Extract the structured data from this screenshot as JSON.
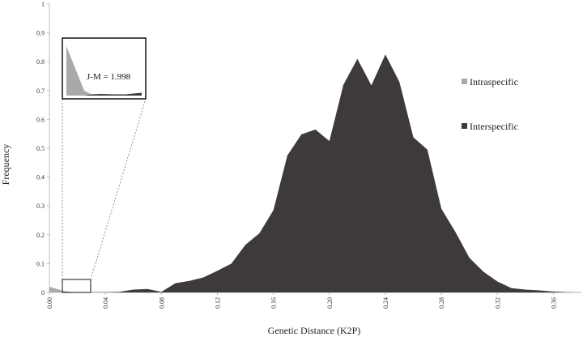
{
  "chart_data": {
    "type": "area",
    "xlabel": "Genetic Distance (K2P)",
    "ylabel": "Frequency",
    "xlim": [
      0,
      0.38
    ],
    "ylim": [
      0,
      1
    ],
    "x_ticks": [
      "0.00",
      "0.04",
      "0.08",
      "0.12",
      "0.16",
      "0.20",
      "0.24",
      "0.28",
      "0.32",
      "0.36"
    ],
    "y_ticks": [
      "0",
      "0.1",
      "0.2",
      "0.3",
      "0.4",
      "0.5",
      "0.6",
      "0.7",
      "0.8",
      "0.9",
      "1"
    ],
    "legend_position": "right",
    "series": [
      {
        "name": "Intraspecific",
        "color": "#a9a9a9",
        "x": [
          0.0,
          0.01,
          0.02
        ],
        "y": [
          0.02,
          0.005,
          0.0
        ]
      },
      {
        "name": "Interspecific",
        "color": "#3d3a39",
        "x": [
          0.0,
          0.01,
          0.02,
          0.03,
          0.04,
          0.05,
          0.06,
          0.07,
          0.08,
          0.09,
          0.1,
          0.11,
          0.12,
          0.13,
          0.14,
          0.15,
          0.16,
          0.17,
          0.18,
          0.19,
          0.2,
          0.21,
          0.22,
          0.23,
          0.24,
          0.25,
          0.26,
          0.27,
          0.28,
          0.29,
          0.3,
          0.31,
          0.32,
          0.33,
          0.34,
          0.35,
          0.36,
          0.37,
          0.38
        ],
        "y": [
          0.0,
          0.0,
          0.0,
          0.001,
          0.001,
          0.002,
          0.01,
          0.012,
          0.002,
          0.032,
          0.04,
          0.052,
          0.075,
          0.1,
          0.165,
          0.205,
          0.285,
          0.475,
          0.548,
          0.565,
          0.525,
          0.72,
          0.81,
          0.718,
          0.825,
          0.73,
          0.538,
          0.495,
          0.29,
          0.21,
          0.12,
          0.072,
          0.038,
          0.015,
          0.01,
          0.007,
          0.003,
          0.001,
          0.0
        ]
      }
    ],
    "inset": {
      "annotation": "J-M = 1.998",
      "x_range": [
        0.0,
        0.026
      ],
      "y_range": [
        0,
        0.1
      ]
    }
  },
  "icons": {
    "legend_marker_shape": "square"
  }
}
